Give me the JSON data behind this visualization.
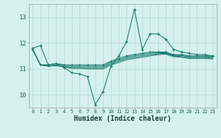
{
  "x": [
    0,
    1,
    2,
    3,
    4,
    5,
    6,
    7,
    8,
    9,
    10,
    11,
    12,
    13,
    14,
    15,
    16,
    17,
    18,
    19,
    20,
    21,
    22,
    23
  ],
  "line_volatile": [
    11.8,
    11.9,
    11.15,
    11.2,
    11.05,
    10.85,
    10.8,
    10.7,
    9.62,
    10.12,
    11.1,
    11.5,
    12.05,
    13.3,
    11.75,
    12.35,
    12.35,
    12.15,
    11.75,
    11.65,
    11.6,
    11.55,
    11.55,
    11.5
  ],
  "line_a": [
    11.75,
    11.15,
    11.15,
    11.2,
    11.15,
    11.15,
    11.15,
    11.15,
    11.15,
    11.15,
    11.3,
    11.4,
    11.5,
    11.55,
    11.6,
    11.65,
    11.65,
    11.65,
    11.55,
    11.55,
    11.5,
    11.5,
    11.5,
    11.5
  ],
  "line_b": [
    11.75,
    11.15,
    11.15,
    11.2,
    11.15,
    11.1,
    11.1,
    11.1,
    11.1,
    11.1,
    11.25,
    11.35,
    11.45,
    11.5,
    11.55,
    11.6,
    11.62,
    11.62,
    11.52,
    11.52,
    11.48,
    11.48,
    11.48,
    11.45
  ],
  "line_c": [
    11.75,
    11.15,
    11.1,
    11.15,
    11.1,
    11.05,
    11.05,
    11.05,
    11.05,
    11.05,
    11.2,
    11.3,
    11.4,
    11.45,
    11.5,
    11.55,
    11.58,
    11.6,
    11.5,
    11.48,
    11.44,
    11.44,
    11.44,
    11.42
  ],
  "line_d": [
    11.75,
    11.15,
    11.1,
    11.12,
    11.08,
    11.02,
    11.02,
    11.0,
    11.0,
    11.0,
    11.15,
    11.25,
    11.35,
    11.4,
    11.45,
    11.5,
    11.55,
    11.57,
    11.47,
    11.45,
    11.4,
    11.4,
    11.4,
    11.38
  ],
  "line_color": "#1a7a6e",
  "bg_color": "#d5f0ee",
  "grid_color": "#b8dbd8",
  "xlabel": "Humidex (Indice chaleur)",
  "ylim": [
    9.5,
    13.5
  ],
  "yticks": [
    10,
    11,
    12,
    13
  ],
  "xticks": [
    0,
    1,
    2,
    3,
    4,
    5,
    6,
    7,
    8,
    9,
    10,
    11,
    12,
    13,
    14,
    15,
    16,
    17,
    18,
    19,
    20,
    21,
    22,
    23
  ]
}
